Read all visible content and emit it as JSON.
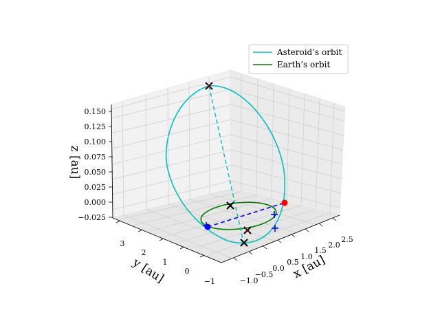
{
  "chart_data": {
    "type": "line",
    "projection": "3d",
    "title": "",
    "xlabel": "x [au]",
    "ylabel": "y [au]",
    "zlabel": "z [au]",
    "xlim": [
      -1.25,
      2.75
    ],
    "ylim": [
      -1.25,
      3.75
    ],
    "zlim": [
      -0.03,
      0.155
    ],
    "x_ticks": [
      "−1.0",
      "−0.5",
      "0.0",
      "0.5",
      "1.0",
      "1.5",
      "2.0",
      "2.5"
    ],
    "y_ticks": [
      "−1",
      "0",
      "1",
      "2",
      "3"
    ],
    "z_ticks": [
      "−0.025",
      "0.000",
      "0.025",
      "0.050",
      "0.075",
      "0.100",
      "0.125",
      "0.150"
    ],
    "grid": true,
    "legend_position": "top-right",
    "series": [
      {
        "name": "Asteroid’s orbit",
        "color": "#00bfbf",
        "style": "solid"
      },
      {
        "name": "Earth’s orbit",
        "color": "#008000",
        "style": "solid"
      }
    ],
    "colors": {
      "asteroid": "#00bfbf",
      "earth": "#008000",
      "line_of_nodes": "#0000ff",
      "perihelion": "#ff0000",
      "aphelion": "#0000ff",
      "markers": "#000000",
      "highlight_marker": "#cc0000"
    }
  }
}
